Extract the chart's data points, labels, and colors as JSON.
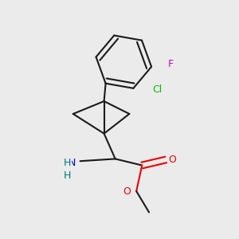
{
  "background_color": "#ebebeb",
  "bond_color": "#1a1a1a",
  "atom_colors": {
    "F": "#cc00cc",
    "Cl": "#00bb00",
    "O": "#ee0000",
    "N": "#0000ee",
    "H_N": "#007777",
    "C": "#1a1a1a"
  },
  "figsize": [
    3.0,
    3.0
  ],
  "dpi": 100
}
